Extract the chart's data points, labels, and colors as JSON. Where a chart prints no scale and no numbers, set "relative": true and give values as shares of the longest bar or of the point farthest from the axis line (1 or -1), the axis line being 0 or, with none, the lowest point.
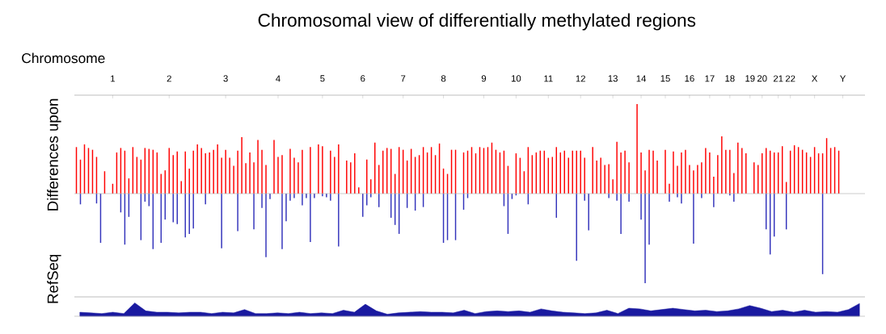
{
  "chart_data": [
    {
      "type": "bar",
      "title": "Chromosomal view of differentially methylated regions",
      "xlabel": "Chromosome",
      "ylabel": "Differences upon",
      "relative": true,
      "categories": [
        null,
        null,
        null,
        null,
        null,
        null,
        null,
        null,
        null,
        "1",
        null,
        null,
        null,
        null,
        null,
        null,
        null,
        null,
        null,
        null,
        null,
        null,
        null,
        "2",
        null,
        null,
        null,
        null,
        null,
        null,
        null,
        null,
        null,
        null,
        null,
        null,
        null,
        "3",
        null,
        null,
        null,
        null,
        null,
        null,
        null,
        null,
        null,
        null,
        null,
        null,
        "4",
        null,
        null,
        null,
        null,
        null,
        null,
        null,
        null,
        null,
        null,
        "5",
        null,
        null,
        null,
        null,
        null,
        null,
        null,
        null,
        null,
        "6",
        null,
        null,
        null,
        null,
        null,
        null,
        null,
        null,
        null,
        "7",
        null,
        null,
        null,
        null,
        null,
        null,
        null,
        null,
        null,
        "8",
        null,
        null,
        null,
        null,
        null,
        null,
        null,
        null,
        null,
        "9",
        null,
        null,
        null,
        null,
        null,
        null,
        null,
        "10",
        null,
        null,
        null,
        null,
        null,
        null,
        null,
        "11",
        null,
        null,
        null,
        null,
        null,
        null,
        null,
        "12",
        null,
        null,
        null,
        null,
        null,
        null,
        null,
        "13",
        null,
        null,
        null,
        null,
        null,
        null,
        "14",
        null,
        null,
        null,
        null,
        null,
        "15",
        null,
        null,
        null,
        null,
        null,
        "16",
        null,
        null,
        null,
        null,
        "17",
        null,
        null,
        null,
        null,
        "18",
        null,
        null,
        null,
        null,
        "19",
        null,
        null,
        "20",
        null,
        null,
        null,
        "21",
        null,
        null,
        "22",
        null,
        null,
        null,
        null,
        null,
        "X",
        null,
        null,
        null,
        null,
        null,
        null,
        "Y",
        null,
        null,
        null,
        null,
        null
      ],
      "series": [
        {
          "color": "#ff0000",
          "values": [
            0.52,
            0.38,
            0.55,
            0.51,
            0.49,
            0.41,
            null,
            0.25,
            null,
            0.11,
            0.46,
            0.51,
            0.48,
            0.17,
            0.52,
            0.41,
            0.38,
            0.51,
            0.5,
            0.49,
            0.46,
            0.22,
            0.26,
            0.51,
            0.43,
            0.47,
            0.14,
            0.47,
            0.28,
            0.48,
            0.55,
            0.51,
            0.45,
            0.46,
            0.49,
            0.55,
            0.4,
            0.49,
            0.4,
            0.31,
            0.48,
            0.63,
            0.34,
            0.46,
            0.35,
            0.6,
            0.49,
            0.32,
            null,
            0.6,
            0.41,
            0.43,
            null,
            0.5,
            0.4,
            0.35,
            0.49,
            null,
            0.52,
            null,
            0.55,
            0.53,
            null,
            0.48,
            0.41,
            0.55,
            null,
            0.37,
            0.35,
            0.45,
            0.07,
            null,
            0.38,
            0.16,
            0.57,
            0.32,
            0.48,
            0.51,
            0.5,
            0.22,
            0.52,
            0.49,
            0.37,
            0.5,
            0.41,
            0.43,
            0.52,
            0.46,
            0.52,
            0.43,
            0.56,
            0.28,
            0.22,
            0.49,
            0.49,
            null,
            0.46,
            0.48,
            0.52,
            0.45,
            0.52,
            0.51,
            0.52,
            0.57,
            0.49,
            0.46,
            0.48,
            0.31,
            null,
            0.45,
            0.4,
            0.25,
            0.52,
            0.43,
            0.46,
            0.48,
            0.48,
            0.4,
            0.41,
            0.52,
            0.46,
            0.48,
            0.4,
            0.48,
            0.48,
            0.48,
            0.4,
            null,
            0.52,
            0.37,
            0.4,
            0.32,
            0.33,
            0.16,
            0.58,
            0.46,
            0.48,
            0.35,
            null,
            1.0,
            0.46,
            0.26,
            0.49,
            0.48,
            0.37,
            null,
            0.49,
            0.11,
            0.47,
            0.31,
            0.46,
            0.49,
            0.32,
            0.26,
            0.32,
            0.35,
            0.51,
            0.46,
            0.19,
            0.43,
            0.64,
            0.49,
            0.49,
            0.23,
            0.57,
            0.51,
            0.45,
            null,
            0.35,
            0.32,
            0.45,
            0.51,
            0.48,
            0.46,
            0.46,
            0.53,
            0.13,
            0.48,
            0.54,
            0.52,
            0.49,
            0.46,
            0.41,
            0.52,
            0.45,
            0.45,
            0.62,
            0.51,
            0.52,
            0.48,
            null,
            null,
            null,
            null,
            null,
            null
          ]
        },
        {
          "color": "#3333bb",
          "values": [
            null,
            -0.12,
            null,
            null,
            null,
            -0.11,
            -0.55,
            null,
            null,
            null,
            null,
            -0.21,
            -0.57,
            -0.26,
            null,
            null,
            -0.52,
            -0.09,
            -0.14,
            -0.62,
            null,
            -0.55,
            -0.29,
            null,
            -0.32,
            -0.34,
            null,
            -0.49,
            -0.45,
            -0.39,
            null,
            null,
            -0.12,
            null,
            null,
            null,
            -0.61,
            null,
            null,
            null,
            -0.42,
            null,
            null,
            null,
            -0.4,
            null,
            -0.16,
            -0.71,
            -0.06,
            null,
            null,
            -0.62,
            -0.31,
            -0.08,
            -0.05,
            null,
            -0.13,
            -0.05,
            -0.54,
            -0.05,
            null,
            -0.03,
            -0.04,
            -0.08,
            null,
            -0.59,
            null,
            null,
            null,
            null,
            null,
            -0.26,
            -0.13,
            -0.04,
            null,
            -0.15,
            null,
            null,
            -0.27,
            -0.35,
            -0.45,
            null,
            -0.16,
            null,
            -0.19,
            null,
            -0.15,
            null,
            null,
            null,
            null,
            -0.55,
            -0.52,
            null,
            -0.52,
            null,
            -0.18,
            -0.05,
            null,
            null,
            null,
            null,
            null,
            null,
            null,
            null,
            -0.14,
            -0.45,
            -0.06,
            -0.02,
            null,
            null,
            -0.12,
            null,
            null,
            null,
            null,
            null,
            null,
            -0.27,
            null,
            null,
            null,
            null,
            -0.75,
            null,
            -0.08,
            -0.41,
            null,
            null,
            null,
            null,
            -0.05,
            null,
            -0.08,
            -0.45,
            null,
            -0.09,
            null,
            null,
            -0.29,
            -1.0,
            -0.57,
            null,
            null,
            null,
            null,
            -0.09,
            null,
            -0.04,
            -0.11,
            null,
            null,
            -0.56,
            null,
            -0.05,
            null,
            null,
            -0.15,
            null,
            null,
            null,
            -0.02,
            -0.09,
            null,
            null,
            null,
            null,
            null,
            null,
            null,
            -0.4,
            -0.68,
            -0.48,
            null,
            null,
            -0.4,
            null,
            null,
            null,
            null,
            null,
            null,
            null,
            null,
            -0.9,
            null,
            null,
            null,
            null,
            null,
            null,
            null,
            null,
            null,
            null
          ]
        }
      ]
    },
    {
      "type": "area",
      "ylabel": "RefSeq",
      "relative": true,
      "color": "#1a1aa0",
      "categories": [
        null,
        null,
        null,
        null,
        null,
        null,
        null,
        null,
        null,
        null,
        null,
        null,
        null,
        null,
        null,
        null,
        null,
        null,
        null,
        null,
        null,
        null,
        null,
        null,
        null,
        null,
        null,
        null,
        null,
        null,
        null,
        null,
        null,
        null,
        null,
        null,
        null,
        null,
        null,
        null,
        null,
        null,
        null,
        null,
        null,
        null,
        null,
        null,
        null,
        null,
        null,
        null,
        null,
        null,
        null,
        null,
        null,
        null,
        null,
        null,
        null,
        null,
        null,
        null,
        null,
        null,
        null,
        null,
        null,
        null,
        null,
        null
      ],
      "values": [
        0.3,
        0.25,
        0.2,
        0.3,
        0.2,
        1.0,
        0.4,
        0.3,
        0.3,
        0.25,
        0.3,
        0.3,
        0.2,
        0.3,
        0.25,
        0.5,
        0.2,
        0.2,
        0.25,
        0.2,
        0.3,
        0.2,
        0.25,
        0.2,
        0.45,
        0.3,
        0.9,
        0.4,
        0.15,
        0.25,
        0.3,
        0.35,
        0.3,
        0.3,
        0.25,
        0.45,
        0.2,
        0.35,
        0.4,
        0.35,
        0.4,
        0.3,
        0.55,
        0.4,
        0.3,
        0.25,
        0.2,
        0.25,
        0.45,
        0.2,
        0.6,
        0.55,
        0.4,
        0.5,
        0.6,
        0.5,
        0.4,
        0.45,
        0.35,
        0.4,
        0.55,
        0.8,
        0.6,
        0.35,
        0.45,
        0.3,
        0.45,
        0.3,
        0.35,
        0.3,
        0.5,
        0.95
      ]
    }
  ]
}
